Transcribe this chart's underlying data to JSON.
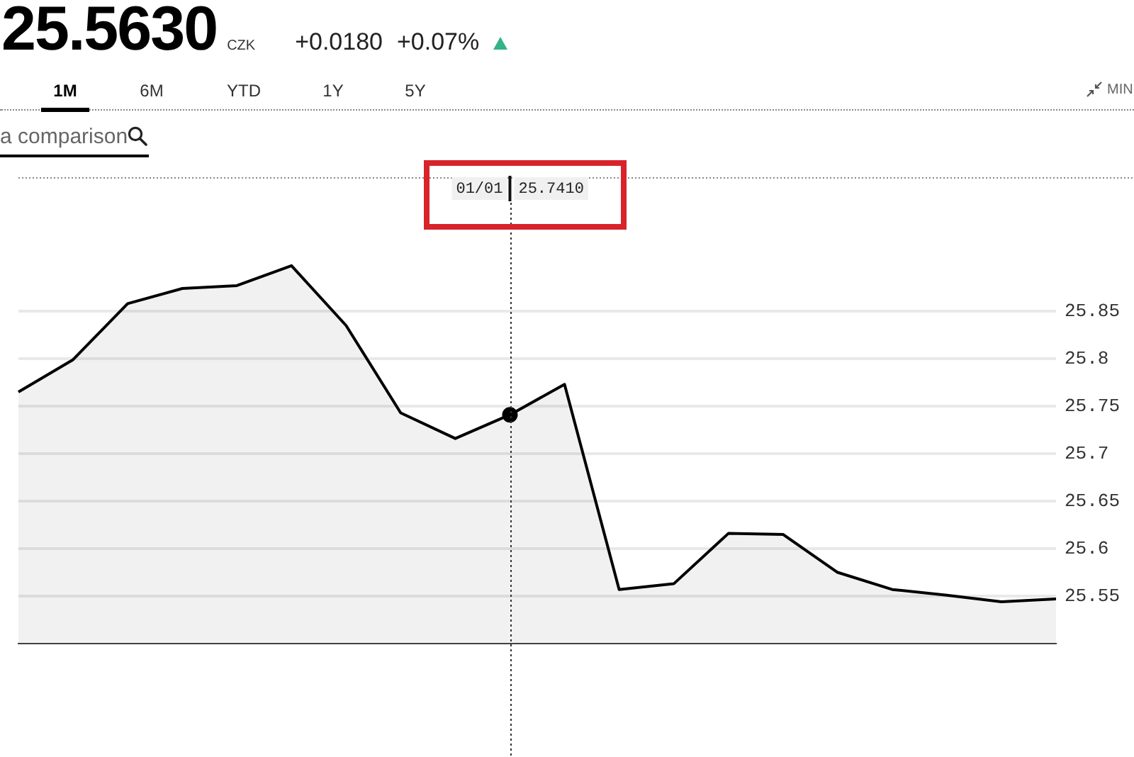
{
  "chart_data": {
    "type": "area",
    "title": "25.5630",
    "subtitle": "CZK",
    "annotations": [
      "+0.0180",
      "+0.07%",
      "1M",
      "6M",
      "YTD",
      "1Y",
      "5Y",
      "MINI",
      "a comparison",
      "01/01 25.7410"
    ],
    "categories": [
      null,
      null,
      null,
      null,
      null,
      null,
      null,
      null,
      null,
      null,
      null,
      null,
      null,
      null,
      null,
      null,
      null,
      null,
      null,
      null
    ],
    "series": [
      {
        "color": "#000000",
        "values": [
          25.765,
          25.799,
          25.858,
          25.874,
          25.877,
          25.898,
          25.835,
          25.743,
          25.716,
          25.741,
          25.773,
          25.557,
          25.563,
          25.616,
          25.615,
          25.575,
          25.557,
          25.551,
          25.544,
          25.547
        ]
      },
      {
        "type": "scatter",
        "color": "#000000",
        "marker": "circle",
        "values": [
          null,
          null,
          null,
          null,
          null,
          null,
          null,
          null,
          null,
          25.741,
          null,
          null,
          null,
          null,
          null,
          null,
          null,
          null,
          null,
          null
        ]
      }
    ],
    "ylim": [
      25.5,
      25.99
    ],
    "yticks": [
      25.55,
      25.6,
      25.65,
      25.7,
      25.75,
      25.8,
      25.85
    ],
    "grid": "y",
    "tick_labels": "y"
  }
}
